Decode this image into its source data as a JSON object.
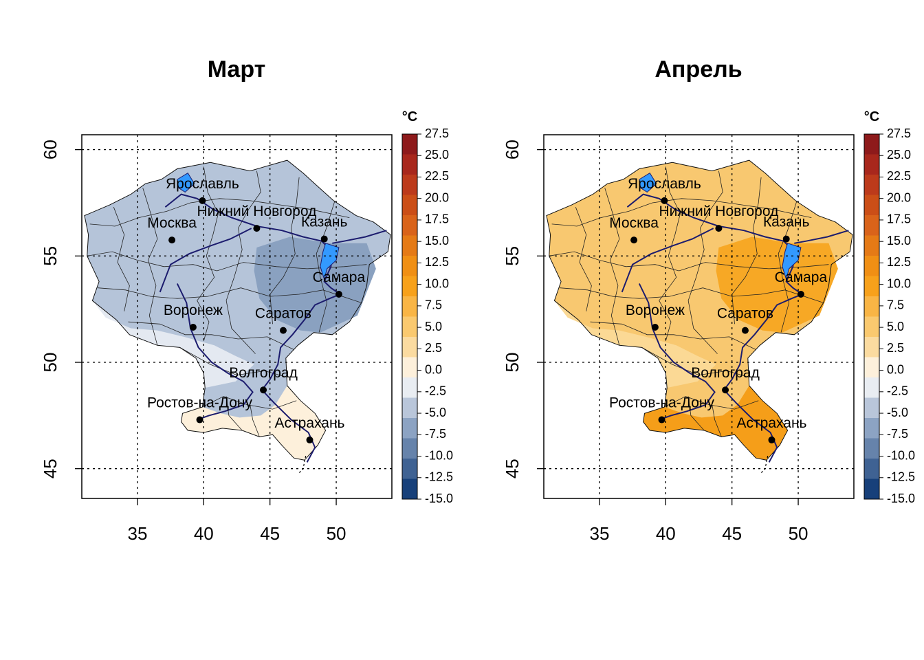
{
  "panels": [
    {
      "title": "Март",
      "fill": "#b5c4d9",
      "fill_dark": "#8aa1c0",
      "fill_light": "#e4e9f1",
      "fill_warm": "#fdf0db"
    },
    {
      "title": "Апрель",
      "fill": "#f8c870",
      "fill_dark": "#f7a825",
      "fill_light": "#fbd995",
      "fill_warm": "#f59e19"
    }
  ],
  "axes": {
    "x_ticks": [
      "35",
      "40",
      "45",
      "50"
    ],
    "y_ticks": [
      "60",
      "55",
      "50",
      "45"
    ],
    "x_range": [
      30.8,
      54.2
    ],
    "y_range": [
      43.6,
      60.7
    ],
    "grid": "dotted"
  },
  "legend": {
    "unit": "°C",
    "labels": [
      "27.5",
      "25.0",
      "22.5",
      "20.0",
      "17.5",
      "15.0",
      "12.5",
      "10.0",
      "7.5",
      "5.0",
      "2.5",
      "0.0",
      "-2.5",
      "-5.0",
      "-7.5",
      "-10.0",
      "-12.5",
      "-15.0"
    ],
    "colors": [
      "#8e1a1b",
      "#a8271c",
      "#bc3a1b",
      "#cb4e17",
      "#d9631a",
      "#e57a16",
      "#f08f14",
      "#f7a11b",
      "#f9b545",
      "#fac96f",
      "#fbdba0",
      "#fdf0db",
      "#e9edf2",
      "#b9c6da",
      "#8ca3c3",
      "#6683ab",
      "#3f6293",
      "#17407a"
    ]
  },
  "cities": [
    {
      "name": "Ярославль",
      "lon": 39.9,
      "lat": 57.6
    },
    {
      "name": "Нижний Новгород",
      "lon": 44.0,
      "lat": 56.3
    },
    {
      "name": "Москва",
      "lon": 37.6,
      "lat": 55.75
    },
    {
      "name": "Казань",
      "lon": 49.1,
      "lat": 55.8
    },
    {
      "name": "Самара",
      "lon": 50.2,
      "lat": 53.2
    },
    {
      "name": "Воронеж",
      "lon": 39.2,
      "lat": 51.65
    },
    {
      "name": "Саратов",
      "lon": 46.0,
      "lat": 51.5
    },
    {
      "name": "Волгоград",
      "lon": 44.5,
      "lat": 48.7
    },
    {
      "name": "Ростов-на-Дону",
      "lon": 39.7,
      "lat": 47.3
    },
    {
      "name": "Астрахань",
      "lon": 48.0,
      "lat": 46.35
    }
  ]
}
